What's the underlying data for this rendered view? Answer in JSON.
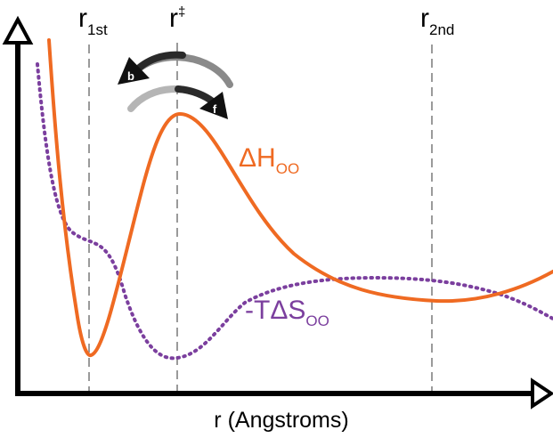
{
  "markers": [
    {
      "main": "r",
      "sub": "1st",
      "sup": ""
    },
    {
      "main": "r",
      "sub": "",
      "sup": "‡"
    },
    {
      "main": "r",
      "sub": "2nd",
      "sup": ""
    }
  ],
  "arrows": {
    "backward": "b",
    "forward": "f"
  },
  "curves": {
    "enthalpy": {
      "main": "ΔH",
      "sub": "OO",
      "color": "#ef6a22"
    },
    "entropy": {
      "main": "-TΔS",
      "sub": "OO",
      "color": "#7b3f9e"
    }
  },
  "xlabel": "r (Angstroms)"
}
